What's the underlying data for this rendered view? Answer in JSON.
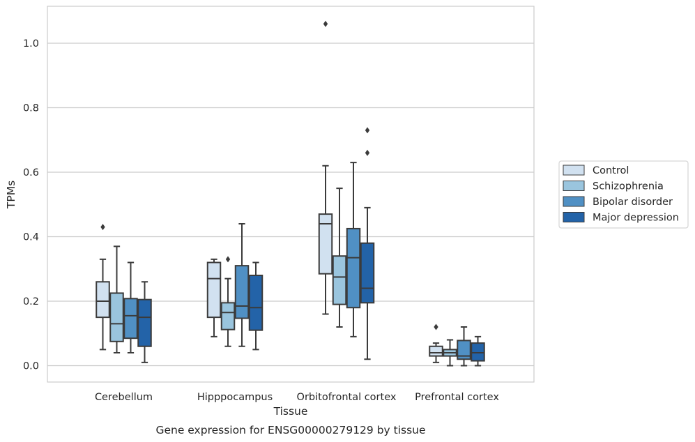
{
  "chart_data": {
    "type": "box",
    "title": "",
    "caption": "Gene expression for ENSG00000279129 by tissue",
    "xlabel": "Tissue",
    "ylabel": "TPMs",
    "ylim": [
      -0.05,
      1.12
    ],
    "yticks": [
      0.0,
      0.2,
      0.4,
      0.6,
      0.8,
      1.0
    ],
    "ytick_labels": [
      "0.0",
      "0.2",
      "0.4",
      "0.6",
      "0.8",
      "1.0"
    ],
    "grid": "horizontal",
    "legend_position": "right",
    "categories": [
      "Cerebellum",
      "Hipppocampus",
      "Orbitofrontal cortex",
      "Prefrontal cortex"
    ],
    "series": [
      {
        "name": "Control",
        "color": "#d1e1f0",
        "boxes": [
          {
            "whislo": 0.05,
            "q1": 0.15,
            "med": 0.2,
            "q3": 0.26,
            "whishi": 0.33,
            "fliers": [
              0.43
            ]
          },
          {
            "whislo": 0.09,
            "q1": 0.15,
            "med": 0.27,
            "q3": 0.32,
            "whishi": 0.33,
            "fliers": []
          },
          {
            "whislo": 0.16,
            "q1": 0.285,
            "med": 0.44,
            "q3": 0.47,
            "whishi": 0.62,
            "fliers": [
              1.06
            ]
          },
          {
            "whislo": 0.01,
            "q1": 0.03,
            "med": 0.04,
            "q3": 0.06,
            "whishi": 0.07,
            "fliers": [
              0.12
            ]
          }
        ]
      },
      {
        "name": "Schizophrenia",
        "color": "#9ac5de",
        "boxes": [
          {
            "whislo": 0.04,
            "q1": 0.075,
            "med": 0.13,
            "q3": 0.225,
            "whishi": 0.37,
            "fliers": []
          },
          {
            "whislo": 0.06,
            "q1": 0.112,
            "med": 0.165,
            "q3": 0.195,
            "whishi": 0.27,
            "fliers": [
              0.33
            ]
          },
          {
            "whislo": 0.12,
            "q1": 0.19,
            "med": 0.275,
            "q3": 0.34,
            "whishi": 0.55,
            "fliers": []
          },
          {
            "whislo": 0.0,
            "q1": 0.03,
            "med": 0.04,
            "q3": 0.05,
            "whishi": 0.08,
            "fliers": []
          }
        ]
      },
      {
        "name": "Bipolar disorder",
        "color": "#5090c4",
        "boxes": [
          {
            "whislo": 0.04,
            "q1": 0.085,
            "med": 0.155,
            "q3": 0.208,
            "whishi": 0.32,
            "fliers": []
          },
          {
            "whislo": 0.06,
            "q1": 0.147,
            "med": 0.185,
            "q3": 0.31,
            "whishi": 0.44,
            "fliers": []
          },
          {
            "whislo": 0.09,
            "q1": 0.18,
            "med": 0.335,
            "q3": 0.425,
            "whishi": 0.63,
            "fliers": []
          },
          {
            "whislo": 0.0,
            "q1": 0.02,
            "med": 0.03,
            "q3": 0.078,
            "whishi": 0.12,
            "fliers": []
          }
        ]
      },
      {
        "name": "Major depression",
        "color": "#2363a8",
        "boxes": [
          {
            "whislo": 0.01,
            "q1": 0.06,
            "med": 0.15,
            "q3": 0.205,
            "whishi": 0.26,
            "fliers": []
          },
          {
            "whislo": 0.05,
            "q1": 0.11,
            "med": 0.18,
            "q3": 0.28,
            "whishi": 0.32,
            "fliers": []
          },
          {
            "whislo": 0.02,
            "q1": 0.195,
            "med": 0.24,
            "q3": 0.38,
            "whishi": 0.49,
            "fliers": [
              0.66,
              0.73
            ]
          },
          {
            "whislo": 0.0,
            "q1": 0.015,
            "med": 0.04,
            "q3": 0.07,
            "whishi": 0.09,
            "fliers": []
          }
        ]
      }
    ],
    "colors": {
      "grid": "#cccccc",
      "frame": "#cccccc",
      "lines": "#3b3b3b",
      "text": "#262626"
    }
  }
}
